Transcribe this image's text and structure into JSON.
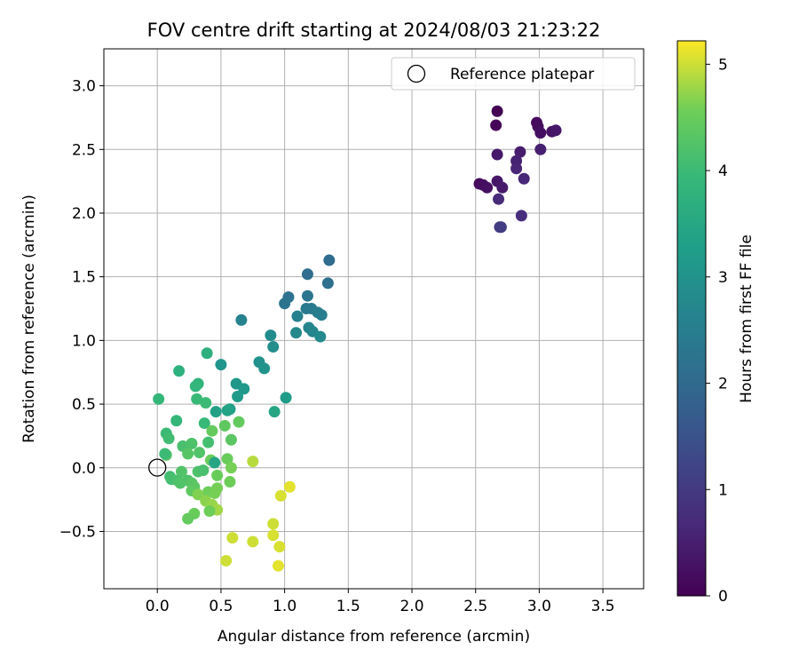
{
  "chart_data": {
    "type": "scatter",
    "title": "FOV centre drift starting at 2024/08/03 21:23:22",
    "xlabel": "Angular distance from reference (arcmin)",
    "ylabel": "Rotation from reference (arcmin)",
    "xlim": [
      -0.42,
      3.82
    ],
    "ylim": [
      -0.95,
      3.29
    ],
    "xticks": [
      "0.0",
      "0.5",
      "1.0",
      "1.5",
      "2.0",
      "2.5",
      "3.0",
      "3.5"
    ],
    "yticks": [
      "−0.5",
      "0.0",
      "0.5",
      "1.0",
      "1.5",
      "2.0",
      "2.5",
      "3.0"
    ],
    "grid": true,
    "legend": {
      "placement": "upper right",
      "entries": [
        "Reference platepar"
      ]
    },
    "reference_point": {
      "x": 0.0,
      "y": 0.0,
      "label": "Reference platepar",
      "marker": "open-circle"
    },
    "colorbar": {
      "label": "Hours from first FF file",
      "min": 0,
      "max": 5.22,
      "ticks": [
        "0",
        "1",
        "2",
        "3",
        "4",
        "5"
      ],
      "colormap": "viridis"
    },
    "series": [
      {
        "points": [
          [
            2.67,
            2.8
          ],
          [
            2.66,
            2.69
          ],
          [
            2.98,
            2.71
          ],
          [
            2.99,
            2.68
          ],
          [
            3.01,
            2.63
          ],
          [
            3.1,
            2.64
          ],
          [
            3.13,
            2.65
          ],
          [
            2.67,
            2.46
          ],
          [
            2.85,
            2.48
          ],
          [
            3.01,
            2.5
          ],
          [
            2.82,
            2.41
          ],
          [
            2.82,
            2.35
          ],
          [
            2.53,
            2.23
          ],
          [
            2.56,
            2.22
          ],
          [
            2.59,
            2.2
          ],
          [
            2.67,
            2.25
          ],
          [
            2.71,
            2.2
          ],
          [
            2.88,
            2.27
          ],
          [
            2.68,
            2.11
          ],
          [
            2.86,
            1.98
          ],
          [
            2.69,
            1.89
          ],
          [
            2.7,
            1.89
          ],
          [
            1.35,
            1.63
          ],
          [
            1.18,
            1.52
          ],
          [
            1.34,
            1.45
          ],
          [
            1.03,
            1.34
          ],
          [
            1.0,
            1.29
          ],
          [
            1.18,
            1.35
          ],
          [
            1.17,
            1.25
          ],
          [
            1.21,
            1.25
          ],
          [
            1.26,
            1.22
          ],
          [
            1.29,
            1.2
          ],
          [
            1.1,
            1.19
          ],
          [
            0.66,
            1.16
          ],
          [
            1.19,
            1.1
          ],
          [
            1.22,
            1.07
          ],
          [
            1.09,
            1.06
          ],
          [
            1.28,
            1.03
          ],
          [
            0.89,
            1.04
          ],
          [
            0.91,
            0.95
          ],
          [
            0.8,
            0.83
          ],
          [
            0.84,
            0.78
          ],
          [
            0.5,
            0.81
          ],
          [
            0.62,
            0.66
          ],
          [
            0.68,
            0.62
          ],
          [
            0.63,
            0.56
          ],
          [
            1.01,
            0.55
          ],
          [
            0.57,
            0.46
          ],
          [
            0.39,
            0.9
          ],
          [
            0.17,
            0.76
          ],
          [
            0.32,
            0.66
          ],
          [
            0.3,
            0.64
          ],
          [
            0.01,
            0.54
          ],
          [
            0.31,
            0.54
          ],
          [
            0.38,
            0.51
          ],
          [
            0.46,
            0.44
          ],
          [
            0.55,
            0.45
          ],
          [
            0.92,
            0.44
          ],
          [
            0.15,
            0.37
          ],
          [
            0.37,
            0.35
          ],
          [
            0.64,
            0.36
          ],
          [
            0.53,
            0.33
          ],
          [
            0.07,
            0.27
          ],
          [
            0.43,
            0.29
          ],
          [
            0.09,
            0.23
          ],
          [
            0.58,
            0.22
          ],
          [
            0.4,
            0.2
          ],
          [
            0.2,
            0.17
          ],
          [
            0.27,
            0.19
          ],
          [
            0.33,
            0.12
          ],
          [
            0.24,
            0.11
          ],
          [
            0.07,
            0.1
          ],
          [
            0.06,
            0.11
          ],
          [
            0.42,
            0.06
          ],
          [
            0.45,
            0.04
          ],
          [
            0.55,
            0.07
          ],
          [
            0.75,
            0.05
          ],
          [
            0.58,
            0.0
          ],
          [
            0.19,
            -0.03
          ],
          [
            0.32,
            -0.03
          ],
          [
            0.36,
            -0.02
          ],
          [
            0.1,
            -0.07
          ],
          [
            0.47,
            -0.06
          ],
          [
            0.11,
            -0.09
          ],
          [
            0.16,
            -0.1
          ],
          [
            0.24,
            -0.1
          ],
          [
            0.18,
            -0.12
          ],
          [
            0.27,
            -0.12
          ],
          [
            0.57,
            -0.11
          ],
          [
            0.29,
            -0.15
          ],
          [
            0.47,
            -0.16
          ],
          [
            0.27,
            -0.18
          ],
          [
            0.4,
            -0.19
          ],
          [
            0.45,
            -0.2
          ],
          [
            0.32,
            -0.21
          ],
          [
            0.38,
            -0.26
          ],
          [
            0.43,
            -0.29
          ],
          [
            0.47,
            -0.33
          ],
          [
            0.41,
            -0.34
          ],
          [
            0.29,
            -0.36
          ],
          [
            0.24,
            -0.4
          ],
          [
            0.97,
            -0.22
          ],
          [
            1.04,
            -0.15
          ],
          [
            0.91,
            -0.44
          ],
          [
            0.91,
            -0.53
          ],
          [
            0.59,
            -0.55
          ],
          [
            0.75,
            -0.58
          ],
          [
            0.96,
            -0.62
          ],
          [
            0.54,
            -0.73
          ],
          [
            0.95,
            -0.77
          ]
        ],
        "hours": [
          0.0,
          0.05,
          0.12,
          0.18,
          0.24,
          0.3,
          0.36,
          0.4,
          0.45,
          0.5,
          0.55,
          0.6,
          0.15,
          0.2,
          0.25,
          0.35,
          0.42,
          0.65,
          0.7,
          0.75,
          1.0,
          1.05,
          2.05,
          2.1,
          2.15,
          2.2,
          2.25,
          2.3,
          2.35,
          2.4,
          2.45,
          2.5,
          2.55,
          2.6,
          2.65,
          2.7,
          2.75,
          2.8,
          2.85,
          2.9,
          2.95,
          3.0,
          3.05,
          3.1,
          3.15,
          3.2,
          3.25,
          3.3,
          3.7,
          3.75,
          3.8,
          3.85,
          3.9,
          3.95,
          4.0,
          3.35,
          3.4,
          3.45,
          3.9,
          3.95,
          4.45,
          4.4,
          4.0,
          4.45,
          4.05,
          4.35,
          4.1,
          4.15,
          4.2,
          4.25,
          4.3,
          4.3,
          4.0,
          4.5,
          3.45,
          4.5,
          4.9,
          4.6,
          4.25,
          4.2,
          4.15,
          4.05,
          4.5,
          4.1,
          4.15,
          4.2,
          4.25,
          4.3,
          4.55,
          4.35,
          4.6,
          4.4,
          4.55,
          4.6,
          4.65,
          4.7,
          4.75,
          4.8,
          4.55,
          4.5,
          4.45,
          5.05,
          5.1,
          5.0,
          5.05,
          5.0,
          5.0,
          5.05,
          5.0,
          5.1
        ]
      }
    ]
  }
}
